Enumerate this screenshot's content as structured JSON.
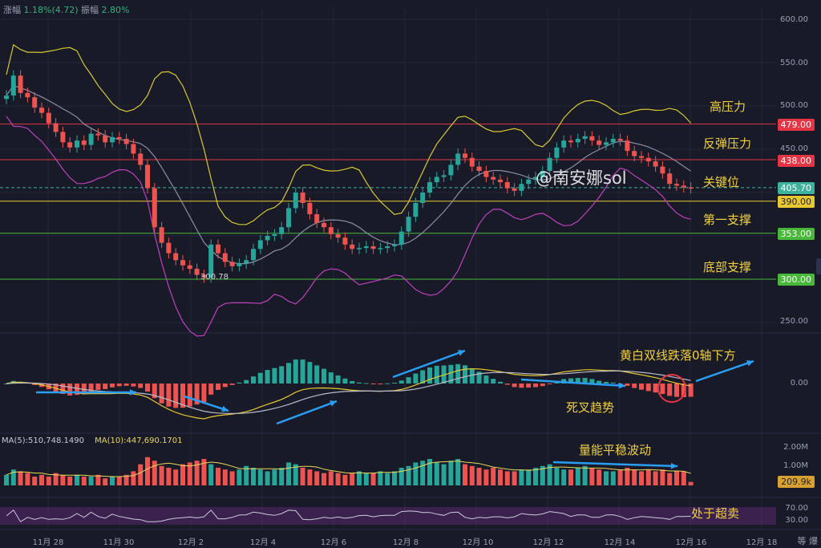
{
  "header": {
    "change_label": "涨幅",
    "change_value": "1.18%(4.72)",
    "amplitude_label": "振幅",
    "amplitude_value": "2.80%"
  },
  "watermark": "@南安娜sol",
  "low_marker": "300.78",
  "volume_legend": {
    "ma5": "MA(5):510,748.1490",
    "ma10": "MA(10):447,690.1701"
  },
  "volume_tag": "209.9k",
  "corner_icons": "等 爆",
  "annotations": {
    "resistance_high": "高压力",
    "rebound_resistance": "反弹压力",
    "key_level": "关键位",
    "first_support": "第一支撑",
    "bottom_support": "底部支撑",
    "macd_note": "黄白双线跌落0轴下方",
    "death_cross": "死叉趋势",
    "volume_note": "量能平稳波动",
    "oversold": "处于超卖"
  },
  "price_axis": [
    "600.00",
    "550.00",
    "500.00",
    "450.00",
    "250.00"
  ],
  "macd_axis": [
    "0.00"
  ],
  "volume_axis": [
    "2.00M",
    "1.00M"
  ],
  "rsi_axis": [
    "70.00",
    "30.00"
  ],
  "x_labels": [
    "11月 28",
    "11月 30",
    "12月 2",
    "12月 4",
    "12月 6",
    "12月 8",
    "12月 10",
    "12月 12",
    "12月 14",
    "12月 16",
    "12月 18"
  ],
  "colors": {
    "background": "#181a28",
    "up": "#26a69a",
    "down": "#ef5350",
    "resistance_line": "#e53545",
    "support_yellow": "#e8c832",
    "support_green": "#48b838",
    "current": "#3db39e",
    "bb_mid": "#8c8ea8",
    "bb_upper": "#d8c830",
    "bb_lower": "#c040c0",
    "arrow": "#2a9df4"
  },
  "chart_data": {
    "type": "candlestick",
    "price_axis_range": [
      240,
      610
    ],
    "levels": [
      {
        "label": "479.00",
        "value": 479.0,
        "color": "#e53545"
      },
      {
        "label": "438.00",
        "value": 438.0,
        "color": "#e53545"
      },
      {
        "label": "405.70",
        "value": 405.7,
        "color": "#3db39e",
        "dashed": true
      },
      {
        "label": "390.00",
        "value": 390.0,
        "color": "#e8c832"
      },
      {
        "label": "353.00",
        "value": 353.0,
        "color": "#48b838"
      },
      {
        "label": "300.00",
        "value": 300.0,
        "color": "#48b838"
      }
    ],
    "close_path": [
      512,
      535,
      515,
      510,
      498,
      492,
      480,
      470,
      458,
      452,
      460,
      455,
      468,
      466,
      458,
      464,
      462,
      456,
      445,
      432,
      405,
      360,
      342,
      330,
      322,
      316,
      312,
      305,
      302,
      340,
      330,
      320,
      315,
      318,
      322,
      335,
      345,
      350,
      352,
      360,
      382,
      400,
      388,
      375,
      365,
      360,
      352,
      348,
      340,
      335,
      336,
      338,
      335,
      336,
      338,
      340,
      355,
      372,
      388,
      400,
      412,
      418,
      420,
      432,
      445,
      440,
      430,
      425,
      418,
      415,
      412,
      405,
      402,
      410,
      415,
      418,
      425,
      440,
      452,
      460,
      458,
      462,
      465,
      460,
      455,
      458,
      462,
      460,
      448,
      442,
      440,
      436,
      430,
      422,
      410,
      408,
      406,
      405
    ],
    "volume_path": [
      0.6,
      0.9,
      0.8,
      0.7,
      0.5,
      0.6,
      0.5,
      0.7,
      0.6,
      0.5,
      0.6,
      0.5,
      0.5,
      0.6,
      0.4,
      0.5,
      0.5,
      0.6,
      0.8,
      1.2,
      1.6,
      1.4,
      1.1,
      1.0,
      0.9,
      1.2,
      1.3,
      1.4,
      1.5,
      1.2,
      1.0,
      0.9,
      0.8,
      0.9,
      1.1,
      1.0,
      0.9,
      0.8,
      0.9,
      1.0,
      1.3,
      1.2,
      1.0,
      0.9,
      0.8,
      0.7,
      0.8,
      0.7,
      0.6,
      0.7,
      0.8,
      0.7,
      0.7,
      0.8,
      0.7,
      0.8,
      1.0,
      1.1,
      1.3,
      1.4,
      1.5,
      1.3,
      1.2,
      1.4,
      1.5,
      1.2,
      1.1,
      1.0,
      0.9,
      1.0,
      0.9,
      0.8,
      0.8,
      0.9,
      0.9,
      1.0,
      1.1,
      1.2,
      1.0,
      0.9,
      0.9,
      1.0,
      1.1,
      1.0,
      0.9,
      0.8,
      0.8,
      0.9,
      1.0,
      0.9,
      0.8,
      0.9,
      0.8,
      0.9,
      0.7,
      0.8,
      0.8,
      0.2
    ]
  }
}
